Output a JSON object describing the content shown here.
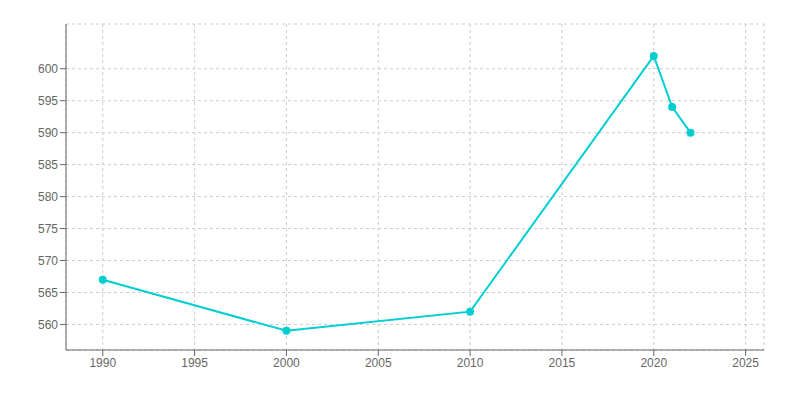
{
  "chart_data": {
    "type": "line",
    "x": [
      1990,
      2000,
      2010,
      2020,
      2021,
      2022
    ],
    "values": [
      567,
      559,
      562,
      602,
      594,
      590
    ],
    "color": "#00CED1",
    "marker": "circle",
    "xlim": [
      1988,
      2026
    ],
    "ylim": [
      556,
      607
    ],
    "xticks": [
      1990,
      1995,
      2000,
      2005,
      2010,
      2015,
      2020,
      2025
    ],
    "yticks": [
      560,
      565,
      570,
      575,
      580,
      585,
      590,
      595,
      600
    ],
    "grid": true
  }
}
